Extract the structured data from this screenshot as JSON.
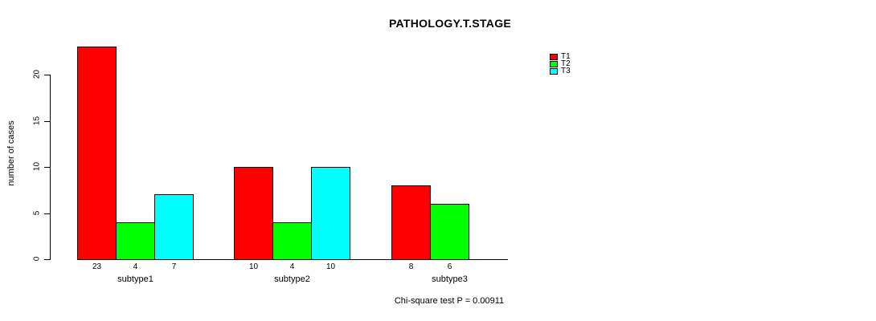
{
  "chart_data": {
    "type": "bar",
    "title": "PATHOLOGY.T.STAGE",
    "ylabel": "number of cases",
    "xlabel": "",
    "categories": [
      "subtype1",
      "subtype2",
      "subtype3"
    ],
    "series": [
      {
        "name": "T1",
        "color": "#ff0000",
        "values": [
          23,
          10,
          8
        ]
      },
      {
        "name": "T2",
        "color": "#00ff00",
        "values": [
          4,
          4,
          6
        ]
      },
      {
        "name": "T3",
        "color": "#00ffff",
        "values": [
          7,
          10,
          0
        ]
      }
    ],
    "bar_value_labels": [
      [
        "23",
        "4",
        "7"
      ],
      [
        "10",
        "4",
        "10"
      ],
      [
        "8",
        "6",
        ""
      ]
    ],
    "yticks": [
      0,
      5,
      10,
      15,
      20
    ],
    "ylim": [
      0,
      23
    ],
    "grid": false,
    "legend_position": "right-outside",
    "legend_entries": [
      "T1",
      "T2",
      "T3"
    ],
    "annotation": "Chi-square test P = 0.00911",
    "colors": {
      "axis": "#000000",
      "background": "#ffffff"
    }
  }
}
